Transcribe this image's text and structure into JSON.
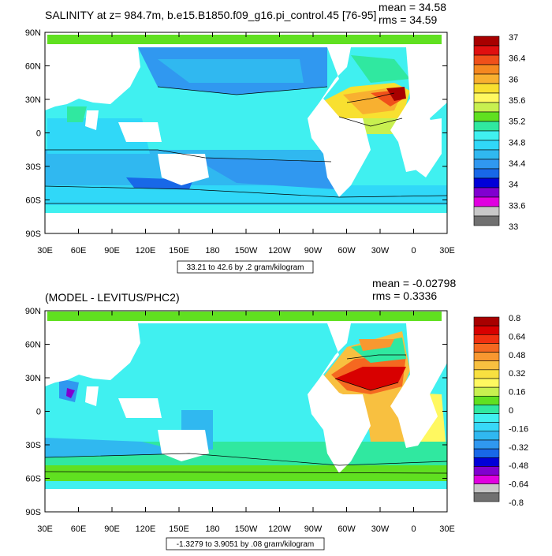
{
  "panels": [
    {
      "title": "SALINITY at z= 984.7m, b.e15.B1850.f09_g16.pi_control.45 [76-95]",
      "mean_label": "mean = 34.58",
      "rms_label": "rms = 34.59",
      "range_label": "33.21 to 42.6 by .2 gram/kilogram",
      "colorbar": {
        "labels": [
          "37",
          "36.4",
          "36",
          "35.6",
          "35.2",
          "34.8",
          "34.4",
          "34",
          "33.6",
          "33"
        ],
        "colors": [
          "#a80000",
          "#e01010",
          "#f0501a",
          "#f58820",
          "#f8b030",
          "#f8e030",
          "#fff860",
          "#c8f050",
          "#60e020",
          "#30e8a0",
          "#40f0f0",
          "#30d8f8",
          "#30b8f0",
          "#3098f0",
          "#1868e8",
          "#0000d8",
          "#8000d0",
          "#e000e0",
          "#c8c8c8",
          "#707070"
        ]
      }
    },
    {
      "title": "(MODEL - LEVITUS/PHC2)",
      "mean_label": "mean = -0.02798",
      "rms_label": "rms = 0.3336",
      "range_label": "-1.3279 to 3.9051 by .08 gram/kilogram",
      "colorbar": {
        "labels": [
          "0.8",
          "0.64",
          "0.48",
          "0.32",
          "0.16",
          "0",
          "-0.16",
          "-0.32",
          "-0.48",
          "-0.64",
          "-0.8"
        ],
        "colors": [
          "#a80000",
          "#d80000",
          "#f03010",
          "#f56820",
          "#f89830",
          "#f8c040",
          "#f8e040",
          "#fff860",
          "#c8f050",
          "#60e020",
          "#30e8a0",
          "#40f0f0",
          "#38d8f8",
          "#30b8f0",
          "#3098f0",
          "#1868e8",
          "#0000d8",
          "#8000d0",
          "#e000e0",
          "#c8c8c8",
          "#707070"
        ]
      }
    }
  ],
  "lon_ticks": [
    "30E",
    "60E",
    "90E",
    "120E",
    "150E",
    "180",
    "150W",
    "120W",
    "90W",
    "60W",
    "30W",
    "0",
    "30E"
  ],
  "lat_ticks": [
    "90N",
    "60N",
    "30N",
    "0",
    "30S",
    "60S",
    "90S"
  ]
}
